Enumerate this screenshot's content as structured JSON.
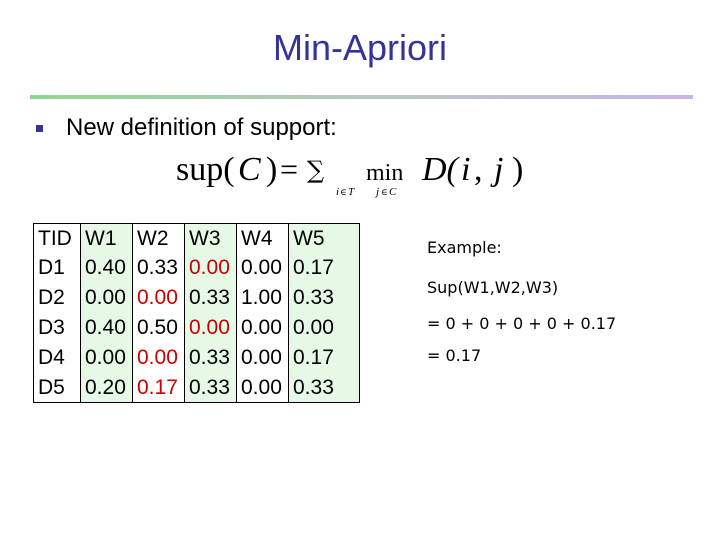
{
  "title": "Min-Apriori",
  "bullet": "New definition of support:",
  "formula": {
    "lhs_fn": "sup(",
    "lhs_var": "C",
    "lhs_close": ")",
    "equals": "=",
    "sum": "∑",
    "sum_sub_i": "i",
    "sum_sub_in": "∈",
    "sum_sub_T": "T",
    "min": "min",
    "min_sub_j": "j",
    "min_sub_in": "∈",
    "min_sub_C": "C",
    "rhs_fn": "D(",
    "rhs_i": "i",
    "rhs_comma": ",",
    "rhs_j": "j",
    "rhs_close": ")"
  },
  "table": {
    "headers": [
      "TID",
      "W1",
      "W2",
      "W3",
      "W4",
      "W5"
    ],
    "rows": [
      [
        "D1",
        "0.40",
        "0.33",
        "0.00",
        "0.00",
        "0.17"
      ],
      [
        "D2",
        "0.00",
        "0.00",
        "0.33",
        "1.00",
        "0.33"
      ],
      [
        "D3",
        "0.40",
        "0.50",
        "0.00",
        "0.00",
        "0.00"
      ],
      [
        "D4",
        "0.00",
        "0.00",
        "0.33",
        "0.00",
        "0.17"
      ],
      [
        "D5",
        "0.20",
        "0.17",
        "0.33",
        "0.00",
        "0.33"
      ]
    ],
    "red_cells": [
      [
        0,
        3
      ],
      [
        1,
        2
      ],
      [
        2,
        3
      ],
      [
        3,
        2
      ],
      [
        4,
        2
      ]
    ],
    "highlight_color": "#e6f9e6",
    "red_color": "#cc0000"
  },
  "example": {
    "label": "Example:",
    "line1": "Sup(W1,W2,W3)",
    "line2": "= 0 + 0 + 0 + 0 + 0.17",
    "line3": "= 0.17"
  },
  "colors": {
    "title": "#333399",
    "bullet": "#333399"
  }
}
